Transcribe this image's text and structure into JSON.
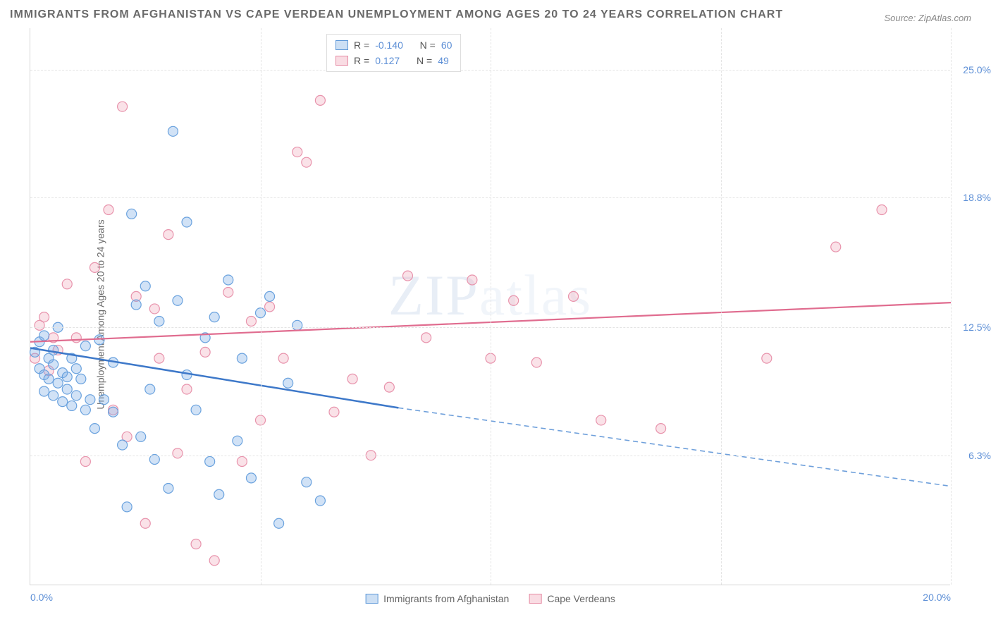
{
  "title": "IMMIGRANTS FROM AFGHANISTAN VS CAPE VERDEAN UNEMPLOYMENT AMONG AGES 20 TO 24 YEARS CORRELATION CHART",
  "source": "Source: ZipAtlas.com",
  "watermark_zip": "ZIP",
  "watermark_atlas": "atlas",
  "y_axis_label": "Unemployment Among Ages 20 to 24 years",
  "chart": {
    "type": "scatter",
    "xlim": [
      0,
      20
    ],
    "ylim": [
      0,
      27
    ],
    "y_ticks": [
      6.3,
      12.5,
      18.8,
      25.0
    ],
    "y_tick_labels": [
      "6.3%",
      "12.5%",
      "18.8%",
      "25.0%"
    ],
    "x_ticks": [
      0,
      20
    ],
    "x_tick_labels": [
      "0.0%",
      "20.0%"
    ],
    "x_grid_positions": [
      5,
      10,
      15,
      20
    ],
    "background_color": "#ffffff",
    "grid_color": "#e4e4e4",
    "marker_radius": 7,
    "colors": {
      "blue_fill": "rgba(122,172,228,0.35)",
      "blue_stroke": "#6aa2de",
      "pink_fill": "rgba(240,160,180,0.30)",
      "pink_stroke": "#e893ac",
      "blue_line": "#3d78c9",
      "pink_line": "#e06c8f",
      "axis_text": "#5d8fd6"
    }
  },
  "legend_top": {
    "rows": [
      {
        "swatch": "blue",
        "r_label": "R =",
        "r_value": "-0.140",
        "n_label": "N =",
        "n_value": "60"
      },
      {
        "swatch": "pink",
        "r_label": "R =",
        "r_value": " 0.127",
        "n_label": "N =",
        "n_value": "49"
      }
    ]
  },
  "legend_bottom": {
    "items": [
      {
        "swatch": "blue",
        "label": "Immigrants from Afghanistan"
      },
      {
        "swatch": "pink",
        "label": "Cape Verdeans"
      }
    ]
  },
  "series_blue": {
    "regression": {
      "x1": 0,
      "y1": 11.5,
      "x2_solid": 8.0,
      "y2_solid": 8.6,
      "x2": 20,
      "y2": 4.8
    },
    "points": [
      [
        0.1,
        11.3
      ],
      [
        0.2,
        10.5
      ],
      [
        0.2,
        11.8
      ],
      [
        0.3,
        10.2
      ],
      [
        0.3,
        9.4
      ],
      [
        0.3,
        12.1
      ],
      [
        0.4,
        10.0
      ],
      [
        0.4,
        11.0
      ],
      [
        0.5,
        9.2
      ],
      [
        0.5,
        10.7
      ],
      [
        0.5,
        11.4
      ],
      [
        0.6,
        9.8
      ],
      [
        0.6,
        12.5
      ],
      [
        0.7,
        8.9
      ],
      [
        0.7,
        10.3
      ],
      [
        0.8,
        9.5
      ],
      [
        0.8,
        10.1
      ],
      [
        0.9,
        11.0
      ],
      [
        0.9,
        8.7
      ],
      [
        1.0,
        10.5
      ],
      [
        1.0,
        9.2
      ],
      [
        1.1,
        10.0
      ],
      [
        1.2,
        8.5
      ],
      [
        1.2,
        11.6
      ],
      [
        1.3,
        9.0
      ],
      [
        1.4,
        7.6
      ],
      [
        1.5,
        11.9
      ],
      [
        1.6,
        9.0
      ],
      [
        1.8,
        8.4
      ],
      [
        1.8,
        10.8
      ],
      [
        2.0,
        6.8
      ],
      [
        2.1,
        3.8
      ],
      [
        2.2,
        18.0
      ],
      [
        2.3,
        13.6
      ],
      [
        2.4,
        7.2
      ],
      [
        2.5,
        14.5
      ],
      [
        2.6,
        9.5
      ],
      [
        2.7,
        6.1
      ],
      [
        2.8,
        12.8
      ],
      [
        3.0,
        4.7
      ],
      [
        3.1,
        22.0
      ],
      [
        3.2,
        13.8
      ],
      [
        3.4,
        10.2
      ],
      [
        3.4,
        17.6
      ],
      [
        3.6,
        8.5
      ],
      [
        3.8,
        12.0
      ],
      [
        3.9,
        6.0
      ],
      [
        4.0,
        13.0
      ],
      [
        4.1,
        4.4
      ],
      [
        4.3,
        14.8
      ],
      [
        4.5,
        7.0
      ],
      [
        4.6,
        11.0
      ],
      [
        4.8,
        5.2
      ],
      [
        5.0,
        13.2
      ],
      [
        5.2,
        14.0
      ],
      [
        5.4,
        3.0
      ],
      [
        5.6,
        9.8
      ],
      [
        5.8,
        12.6
      ],
      [
        6.0,
        5.0
      ],
      [
        6.3,
        4.1
      ]
    ]
  },
  "series_pink": {
    "regression": {
      "x1": 0,
      "y1": 11.8,
      "x2": 20,
      "y2": 13.7
    },
    "points": [
      [
        0.1,
        11.0
      ],
      [
        0.2,
        12.6
      ],
      [
        0.3,
        13.0
      ],
      [
        0.4,
        10.4
      ],
      [
        0.5,
        12.0
      ],
      [
        0.6,
        11.4
      ],
      [
        0.8,
        14.6
      ],
      [
        1.0,
        12.0
      ],
      [
        1.2,
        6.0
      ],
      [
        1.4,
        15.4
      ],
      [
        1.7,
        18.2
      ],
      [
        1.8,
        8.5
      ],
      [
        2.0,
        23.2
      ],
      [
        2.1,
        7.2
      ],
      [
        2.3,
        14.0
      ],
      [
        2.5,
        3.0
      ],
      [
        2.7,
        13.4
      ],
      [
        2.8,
        11.0
      ],
      [
        3.0,
        17.0
      ],
      [
        3.2,
        6.4
      ],
      [
        3.4,
        9.5
      ],
      [
        3.6,
        2.0
      ],
      [
        3.8,
        11.3
      ],
      [
        4.0,
        1.2
      ],
      [
        4.3,
        14.2
      ],
      [
        4.6,
        6.0
      ],
      [
        4.8,
        12.8
      ],
      [
        5.0,
        8.0
      ],
      [
        5.2,
        13.5
      ],
      [
        5.5,
        11.0
      ],
      [
        5.8,
        21.0
      ],
      [
        6.0,
        20.5
      ],
      [
        6.3,
        23.5
      ],
      [
        6.6,
        8.4
      ],
      [
        7.0,
        10.0
      ],
      [
        7.4,
        6.3
      ],
      [
        7.8,
        9.6
      ],
      [
        8.2,
        15.0
      ],
      [
        8.6,
        12.0
      ],
      [
        9.6,
        14.8
      ],
      [
        10.0,
        11.0
      ],
      [
        10.5,
        13.8
      ],
      [
        11.0,
        10.8
      ],
      [
        11.8,
        14.0
      ],
      [
        12.4,
        8.0
      ],
      [
        13.7,
        7.6
      ],
      [
        16.0,
        11.0
      ],
      [
        17.5,
        16.4
      ],
      [
        18.5,
        18.2
      ]
    ]
  }
}
